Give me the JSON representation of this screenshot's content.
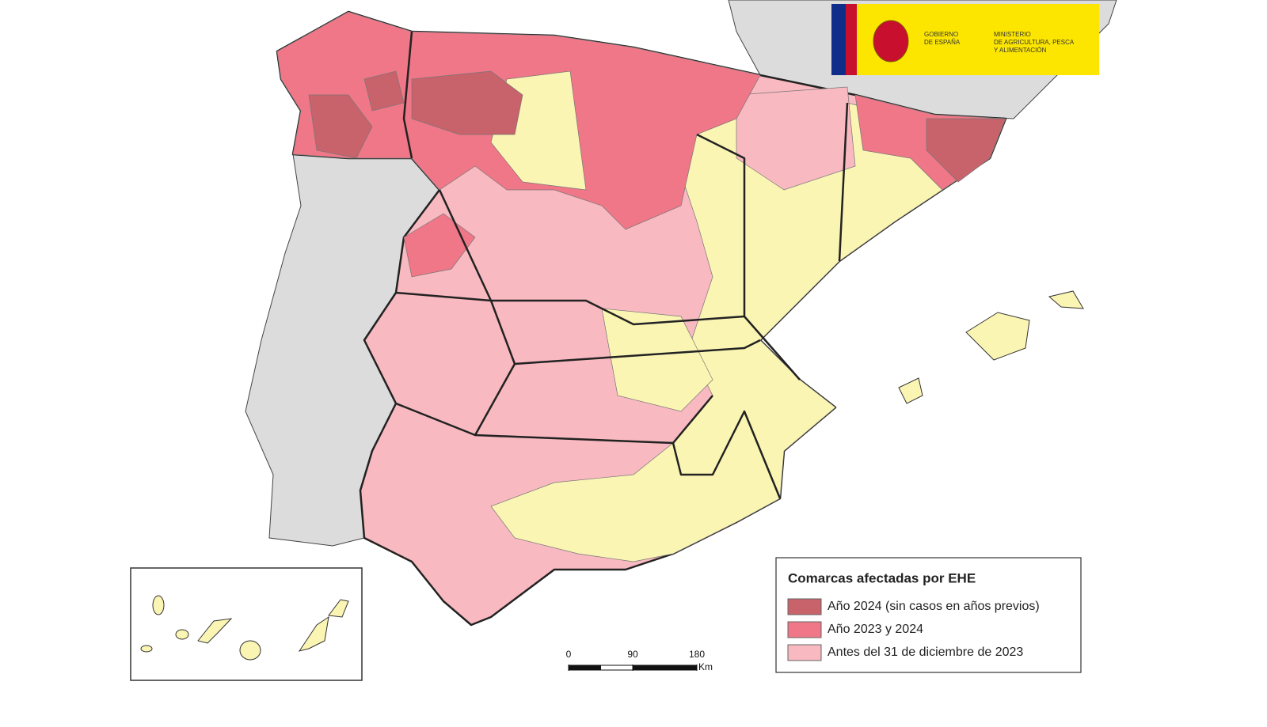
{
  "header": {
    "government": [
      "GOBIERNO",
      "DE ESPAÑA"
    ],
    "ministry": [
      "MINISTERIO",
      "DE AGRICULTURA, PESCA",
      "Y ALIMENTACIÓN"
    ]
  },
  "legend": {
    "title": "Comarcas afectadas por EHE",
    "items": [
      {
        "label": "Año 2024 (sin casos en años previos)",
        "color": "#c8626b"
      },
      {
        "label": "Año 2023 y 2024",
        "color": "#ef7787"
      },
      {
        "label": "Antes del 31 de diciembre de 2023",
        "color": "#f8b9c0"
      }
    ]
  },
  "scale_bar": {
    "ticks": [
      0,
      90,
      180
    ],
    "unit": "Km"
  }
}
